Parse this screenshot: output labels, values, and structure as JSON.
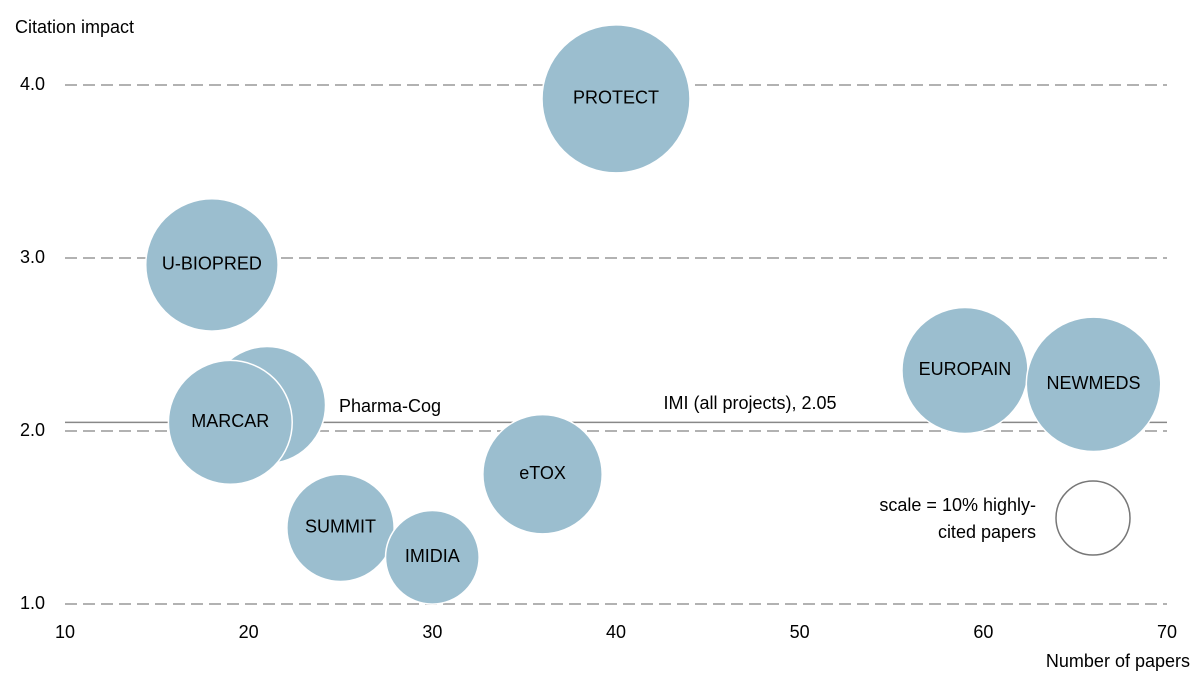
{
  "chart_data": {
    "type": "bubble",
    "ylabel": "Citation impact",
    "xlabel": "Number of papers",
    "series": [
      {
        "name": "Bubbles",
        "color": "#9bbecf",
        "labels": [
          "PROTECT",
          "U-BIOPRED",
          "Pharma-Cog",
          "MARCAR",
          "SUMMIT",
          "IMIDIA",
          "eTOX",
          "EUROPAIN",
          "NEWMEDS"
        ],
        "x": [
          40,
          18,
          21,
          19,
          25,
          30,
          36,
          59,
          66
        ],
        "values": [
          3.92,
          2.96,
          2.15,
          2.05,
          1.44,
          1.27,
          1.75,
          2.35,
          2.27
        ],
        "sizes": [
          40,
          32,
          25,
          28,
          21,
          16,
          26,
          29,
          33
        ]
      }
    ],
    "reference_line": {
      "label": "IMI (all projects), 2.05",
      "value": 2.05
    },
    "size_scale": 10,
    "size_scale_label": [
      "scale = 10% highly-",
      "cited papers"
    ],
    "xlim": [
      10,
      70
    ],
    "xticks": [
      10,
      20,
      30,
      40,
      50,
      60,
      70
    ],
    "ylim": [
      1,
      4
    ],
    "yticks": [
      {
        "value": 1,
        "label": "1.0"
      },
      {
        "value": 2,
        "label": "2.0"
      },
      {
        "value": 3,
        "label": "3.0"
      },
      {
        "value": 4,
        "label": "4.0"
      }
    ],
    "grid": true
  }
}
